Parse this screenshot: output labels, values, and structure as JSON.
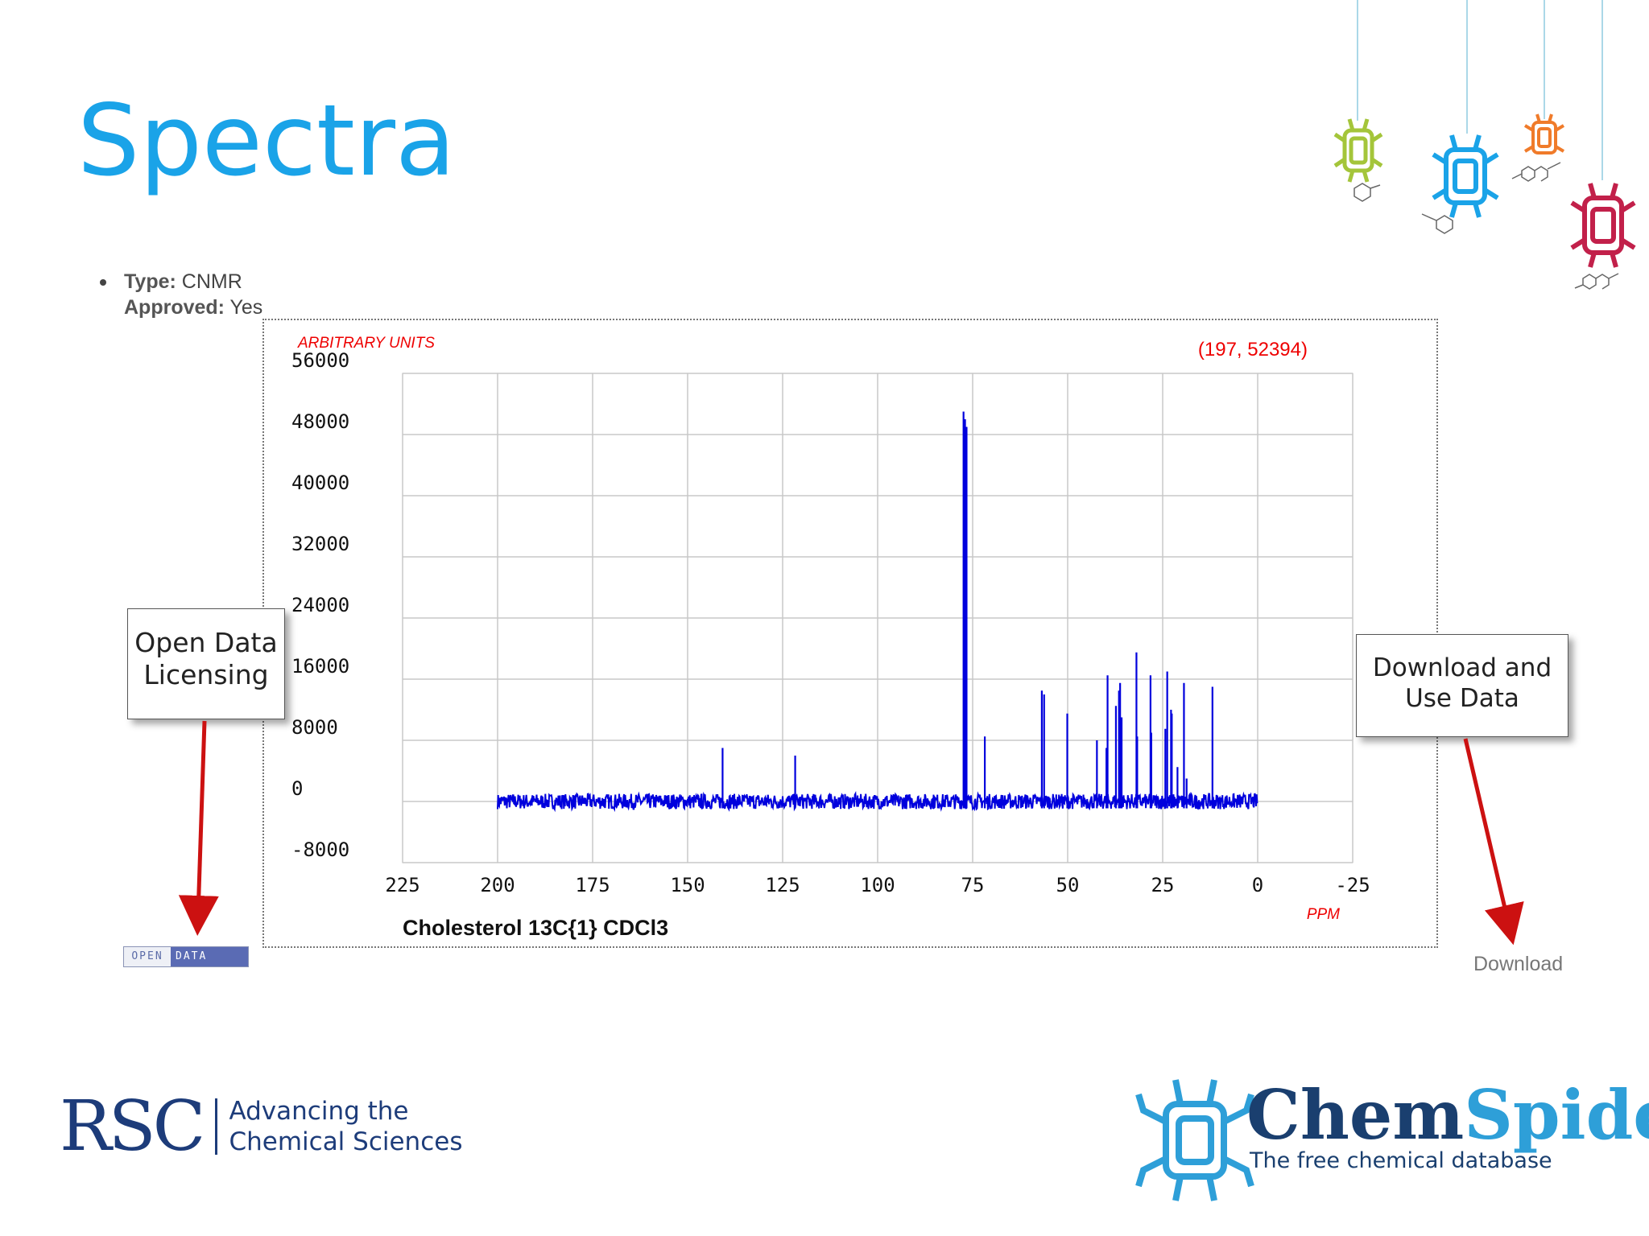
{
  "slide": {
    "title": "Spectra"
  },
  "meta": {
    "type_label": "Type:",
    "type_value": "CNMR",
    "approved_label": "Approved:",
    "approved_value": "Yes"
  },
  "callouts": {
    "left": "Open Data Licensing",
    "right": "Download and Use Data"
  },
  "badge": {
    "open": "OPEN",
    "data": "DATA"
  },
  "download_label": "Download",
  "rsc": {
    "word": "RSC",
    "tagline_1": "Advancing the",
    "tagline_2": "Chemical Sciences"
  },
  "chemspider": {
    "chem": "Chem",
    "spider": "Spider",
    "subtitle": "The free chemical database"
  },
  "colors": {
    "title": "#1aa3e8",
    "spectrum": "#0000dd",
    "axis_label": "#ee0000",
    "callout_arrow": "#cc1111"
  },
  "chart_data": {
    "type": "line",
    "title": "Cholesterol 13C{1} CDCl3",
    "xlabel": "PPM",
    "ylabel": "ARBITRARY UNITS",
    "cursor_readout": "(197, 52394)",
    "xlim": [
      225,
      -25
    ],
    "ylim": [
      -8000,
      56000
    ],
    "x_ticks": [
      225,
      200,
      175,
      150,
      125,
      100,
      75,
      50,
      25,
      0,
      -25
    ],
    "y_ticks": [
      56000,
      48000,
      40000,
      32000,
      24000,
      16000,
      8000,
      0,
      -8000
    ],
    "grid": true,
    "baseline_range": [
      200,
      0
    ],
    "peaks": [
      {
        "x": 140.8,
        "y": 7000
      },
      {
        "x": 121.7,
        "y": 6000
      },
      {
        "x": 77.4,
        "y": 51000
      },
      {
        "x": 77.0,
        "y": 50000
      },
      {
        "x": 76.6,
        "y": 49000
      },
      {
        "x": 71.8,
        "y": 8500
      },
      {
        "x": 56.8,
        "y": 14500
      },
      {
        "x": 56.2,
        "y": 14000
      },
      {
        "x": 50.1,
        "y": 11500
      },
      {
        "x": 42.3,
        "y": 8000
      },
      {
        "x": 39.8,
        "y": 7000
      },
      {
        "x": 39.5,
        "y": 16500
      },
      {
        "x": 37.3,
        "y": 12500
      },
      {
        "x": 36.5,
        "y": 14500
      },
      {
        "x": 36.2,
        "y": 15500
      },
      {
        "x": 35.8,
        "y": 11000
      },
      {
        "x": 31.9,
        "y": 19500
      },
      {
        "x": 31.7,
        "y": 8500
      },
      {
        "x": 28.2,
        "y": 16500
      },
      {
        "x": 28.0,
        "y": 9000
      },
      {
        "x": 24.3,
        "y": 9500
      },
      {
        "x": 23.8,
        "y": 17000
      },
      {
        "x": 22.8,
        "y": 12000
      },
      {
        "x": 22.6,
        "y": 11500
      },
      {
        "x": 21.1,
        "y": 4500
      },
      {
        "x": 19.4,
        "y": 15500
      },
      {
        "x": 18.7,
        "y": 3000
      },
      {
        "x": 11.9,
        "y": 15000
      }
    ]
  }
}
